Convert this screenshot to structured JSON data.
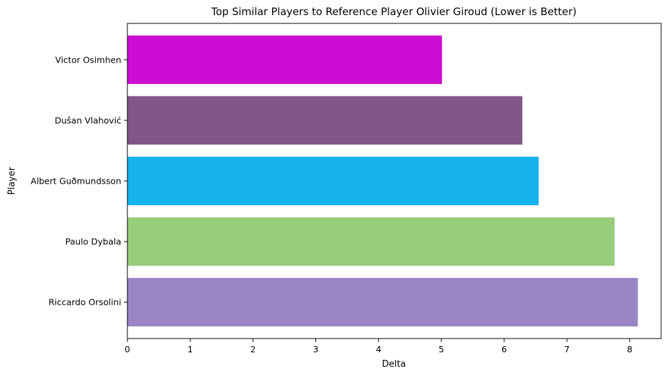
{
  "chart_data": {
    "type": "bar",
    "orientation": "horizontal",
    "title": "Top Similar Players to Reference Player Olivier Giroud (Lower is Better)",
    "xlabel": "Delta",
    "ylabel": "Player",
    "xlim": [
      0,
      8.5
    ],
    "x_ticks": [
      0,
      1,
      2,
      3,
      4,
      5,
      6,
      7,
      8
    ],
    "grid": false,
    "legend": "none",
    "categories": [
      "Victor Osimhen",
      "Dušan Vlahović",
      "Albert Guðmundsson",
      "Paulo Dybala",
      "Riccardo Orsolini"
    ],
    "values": [
      5.01,
      6.29,
      6.55,
      7.76,
      8.13
    ],
    "colors": [
      "#cc0ed4",
      "#815787",
      "#16b2ee",
      "#98cd7c",
      "#9a85c4"
    ]
  }
}
